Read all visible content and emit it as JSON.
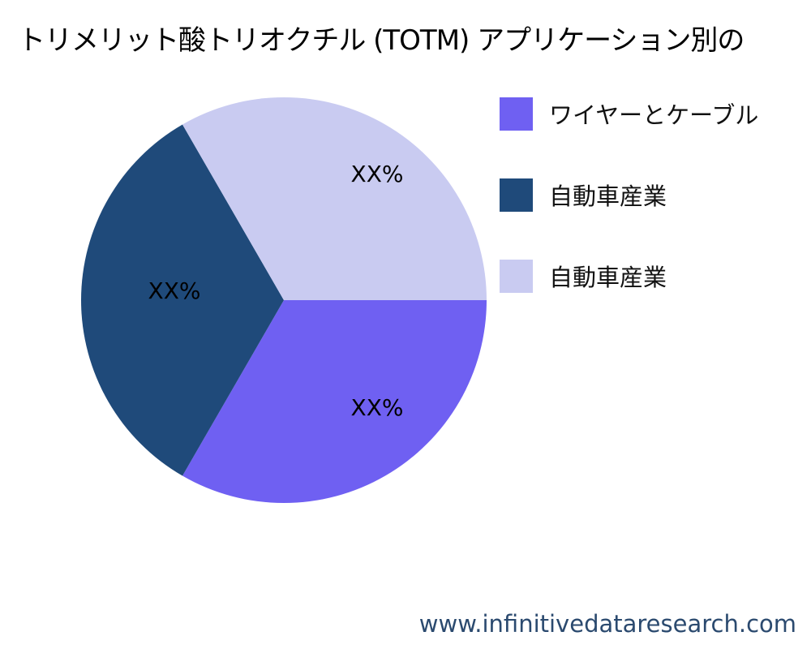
{
  "chart_data": {
    "type": "pie",
    "title": "トリメリット酸トリオクチル (TOTM) アプリケーション別の",
    "categories": [
      "ワイヤーとケーブル",
      "自動車産業",
      "自動車産業"
    ],
    "values": [
      33.33,
      33.33,
      33.33
    ],
    "data_labels": [
      "XX%",
      "XX%",
      "XX%"
    ],
    "colors": [
      "#6F60F2",
      "#1F4A7A",
      "#C9CBF1"
    ],
    "legend_placement": "right"
  },
  "footer": "www.infinitivedataresearch.com"
}
